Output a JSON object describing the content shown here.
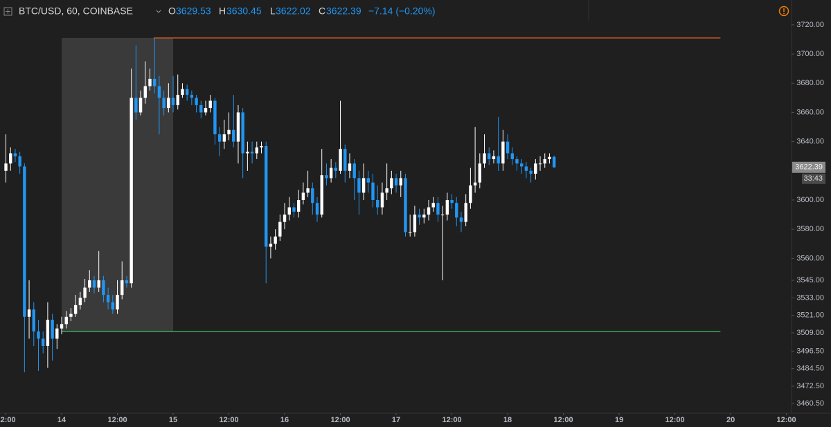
{
  "header": {
    "symbol": "BTC/USD, 60, COINBASE",
    "o_label": "O",
    "o": "3629.53",
    "h_label": "H",
    "h": "3630.45",
    "l_label": "L",
    "l": "3622.02",
    "c_label": "C",
    "c": "3622.39",
    "change": "−7.14 (−0.20%)"
  },
  "chart_data": {
    "type": "candlestick",
    "up_color": "#ffffff",
    "down_color": "#2196f3",
    "x": [
      -12,
      -11,
      -10,
      -9,
      -8,
      -7,
      -6,
      -5,
      -4,
      -3,
      -2,
      -1,
      0,
      1,
      2,
      3,
      4,
      5,
      6,
      7,
      8,
      9,
      10,
      11,
      12,
      13,
      14,
      15,
      16,
      17,
      18,
      19,
      20,
      21,
      22,
      23,
      24,
      25,
      26,
      27,
      28,
      29,
      30,
      31,
      32,
      33,
      34,
      35,
      36,
      37,
      38,
      39,
      40,
      41,
      42,
      43,
      44,
      45,
      46,
      47,
      48,
      49,
      50,
      51,
      52,
      53,
      54,
      55,
      56,
      57,
      58,
      59,
      60,
      61,
      62,
      63,
      64,
      65,
      66,
      67,
      68,
      69,
      70,
      71,
      72,
      73,
      74,
      75,
      76,
      77,
      78,
      79,
      80,
      81,
      82,
      83,
      84,
      85,
      86,
      87,
      88,
      89,
      90,
      91,
      92,
      93,
      94,
      95,
      96,
      97,
      98,
      99,
      100,
      101,
      102,
      103,
      104,
      105,
      106
    ],
    "open": [
      3620,
      3625,
      3632,
      3630,
      3623,
      3520,
      3525,
      3510,
      3505,
      3500,
      3518,
      3505,
      3512,
      3515,
      3520,
      3522,
      3528,
      3533,
      3540,
      3545,
      3540,
      3545,
      3535,
      3530,
      3525,
      3535,
      3545,
      3543,
      3670,
      3660,
      3670,
      3678,
      3683,
      3678,
      3670,
      3663,
      3670,
      3665,
      3672,
      3676,
      3672,
      3670,
      3665,
      3660,
      3663,
      3668,
      3645,
      3640,
      3645,
      3648,
      3640,
      3660,
      3632,
      3633,
      3632,
      3636,
      3637,
      3568,
      3570,
      3575,
      3585,
      3590,
      3595,
      3592,
      3600,
      3605,
      3608,
      3598,
      3590,
      3617,
      3615,
      3622,
      3620,
      3635,
      3620,
      3625,
      3615,
      3605,
      3615,
      3612,
      3600,
      3595,
      3605,
      3608,
      3615,
      3610,
      3615,
      3578,
      3578,
      3590,
      3588,
      3590,
      3595,
      3598,
      3590,
      3590,
      3600,
      3598,
      3588,
      3585,
      3598,
      3610,
      3612,
      3625,
      3632,
      3628,
      3630,
      3625,
      3640,
      3632,
      3628,
      3625,
      3623,
      3620,
      3618,
      3625,
      3625,
      3628,
      3629.53
    ],
    "high": [
      3645,
      3636,
      3635,
      3633,
      3625,
      3545,
      3530,
      3518,
      3510,
      3530,
      3522,
      3515,
      3520,
      3524,
      3526,
      3535,
      3537,
      3546,
      3552,
      3548,
      3565,
      3548,
      3540,
      3535,
      3545,
      3558,
      3548,
      3690,
      3706,
      3675,
      3695,
      3690,
      3711,
      3685,
      3675,
      3680,
      3685,
      3686,
      3680,
      3679,
      3675,
      3672,
      3668,
      3668,
      3672,
      3670,
      3650,
      3655,
      3660,
      3672,
      3665,
      3663,
      3640,
      3640,
      3640,
      3640,
      3640,
      3575,
      3580,
      3590,
      3598,
      3602,
      3598,
      3607,
      3612,
      3620,
      3612,
      3602,
      3635,
      3625,
      3628,
      3626,
      3668,
      3638,
      3632,
      3628,
      3620,
      3625,
      3620,
      3618,
      3610,
      3612,
      3625,
      3620,
      3618,
      3620,
      3618,
      3590,
      3596,
      3594,
      3594,
      3600,
      3602,
      3602,
      3596,
      3605,
      3604,
      3602,
      3592,
      3604,
      3622,
      3650,
      3632,
      3645,
      3636,
      3634,
      3657,
      3648,
      3645,
      3636,
      3630,
      3628,
      3626,
      3622,
      3628,
      3630,
      3632,
      3632,
      3630.45
    ],
    "low": [
      3612,
      3620,
      3626,
      3618,
      3482,
      3505,
      3500,
      3483,
      3495,
      3485,
      3490,
      3498,
      3508,
      3512,
      3517,
      3520,
      3525,
      3530,
      3537,
      3536,
      3537,
      3530,
      3525,
      3522,
      3522,
      3532,
      3540,
      3540,
      3655,
      3658,
      3666,
      3675,
      3673,
      3645,
      3658,
      3660,
      3660,
      3662,
      3670,
      3668,
      3665,
      3660,
      3656,
      3658,
      3660,
      3638,
      3630,
      3635,
      3641,
      3636,
      3625,
      3615,
      3620,
      3625,
      3628,
      3632,
      3543,
      3560,
      3566,
      3572,
      3580,
      3586,
      3588,
      3588,
      3597,
      3602,
      3590,
      3585,
      3588,
      3610,
      3612,
      3615,
      3618,
      3612,
      3615,
      3600,
      3590,
      3600,
      3605,
      3595,
      3590,
      3590,
      3600,
      3604,
      3605,
      3602,
      3575,
      3575,
      3575,
      3583,
      3584,
      3586,
      3592,
      3585,
      3545,
      3586,
      3594,
      3582,
      3578,
      3582,
      3594,
      3605,
      3608,
      3622,
      3624,
      3625,
      3620,
      3620,
      3628,
      3624,
      3620,
      3618,
      3615,
      3612,
      3614,
      3620,
      3622,
      3625,
      3622.02
    ],
    "close": [
      3625,
      3632,
      3630,
      3623,
      3520,
      3525,
      3510,
      3505,
      3500,
      3518,
      3505,
      3512,
      3515,
      3520,
      3522,
      3528,
      3533,
      3540,
      3545,
      3540,
      3545,
      3535,
      3530,
      3525,
      3535,
      3545,
      3543,
      3670,
      3660,
      3670,
      3678,
      3683,
      3678,
      3670,
      3663,
      3670,
      3665,
      3672,
      3676,
      3672,
      3670,
      3665,
      3660,
      3663,
      3668,
      3645,
      3640,
      3645,
      3648,
      3640,
      3660,
      3632,
      3633,
      3632,
      3636,
      3637,
      3568,
      3570,
      3575,
      3585,
      3590,
      3595,
      3592,
      3600,
      3605,
      3608,
      3598,
      3590,
      3617,
      3615,
      3622,
      3620,
      3635,
      3620,
      3625,
      3615,
      3605,
      3615,
      3612,
      3600,
      3595,
      3605,
      3608,
      3615,
      3610,
      3615,
      3578,
      3578,
      3590,
      3588,
      3590,
      3595,
      3598,
      3590,
      3590,
      3600,
      3598,
      3588,
      3585,
      3598,
      3610,
      3612,
      3625,
      3632,
      3628,
      3630,
      3625,
      3640,
      3632,
      3628,
      3625,
      3623,
      3620,
      3618,
      3625,
      3625,
      3628,
      3629.53,
      3622.39
    ],
    "xlim": [
      -13.27,
      165.6
    ],
    "xticks": [
      {
        "value": -12,
        "label": "12:00"
      },
      {
        "value": 0,
        "label": "14"
      },
      {
        "value": 12,
        "label": "12:00"
      },
      {
        "value": 24,
        "label": "15"
      },
      {
        "value": 36,
        "label": "12:00"
      },
      {
        "value": 48,
        "label": "16"
      },
      {
        "value": 60,
        "label": "12:00"
      },
      {
        "value": 72,
        "label": "17"
      },
      {
        "value": 84,
        "label": "12:00"
      },
      {
        "value": 96,
        "label": "18"
      },
      {
        "value": 108,
        "label": "12:00"
      },
      {
        "value": 120,
        "label": "19"
      },
      {
        "value": 132,
        "label": "12:00"
      },
      {
        "value": 144,
        "label": "20"
      },
      {
        "value": 156,
        "label": "12:00"
      }
    ],
    "ylim": [
      3454,
      3737
    ],
    "yticks": [
      {
        "value": 3720,
        "label": "3720.00"
      },
      {
        "value": 3700,
        "label": "3700.00"
      },
      {
        "value": 3680,
        "label": "3680.00"
      },
      {
        "value": 3660,
        "label": "3660.00"
      },
      {
        "value": 3640,
        "label": "3640.00"
      },
      {
        "value": 3620,
        "label": "3620.00"
      },
      {
        "value": 3600,
        "label": "3600.00"
      },
      {
        "value": 3580,
        "label": "3580.00"
      },
      {
        "value": 3560,
        "label": "3560.00"
      },
      {
        "value": 3545,
        "label": "3545.00"
      },
      {
        "value": 3533,
        "label": "3533.00"
      },
      {
        "value": 3521,
        "label": "3521.00"
      },
      {
        "value": 3509,
        "label": "3509.00"
      },
      {
        "value": 3496.5,
        "label": "3496.50"
      },
      {
        "value": 3484.5,
        "label": "3484.50"
      },
      {
        "value": 3472.5,
        "label": "3472.50"
      },
      {
        "value": 3460.5,
        "label": "3460.50"
      }
    ],
    "highlight": {
      "x": [
        0,
        24
      ],
      "y": [
        3510,
        3711
      ],
      "color": "#3a3a3a"
    },
    "hlines": [
      {
        "value": 3711,
        "x": [
          19.8,
          141.8
        ],
        "color": "#e0602a"
      },
      {
        "value": 3510,
        "x": [
          0,
          141.8
        ],
        "color": "#3cc36a"
      }
    ],
    "last_price": {
      "value": 3622.39,
      "label": "3622.39",
      "countdown": "33:43"
    }
  }
}
